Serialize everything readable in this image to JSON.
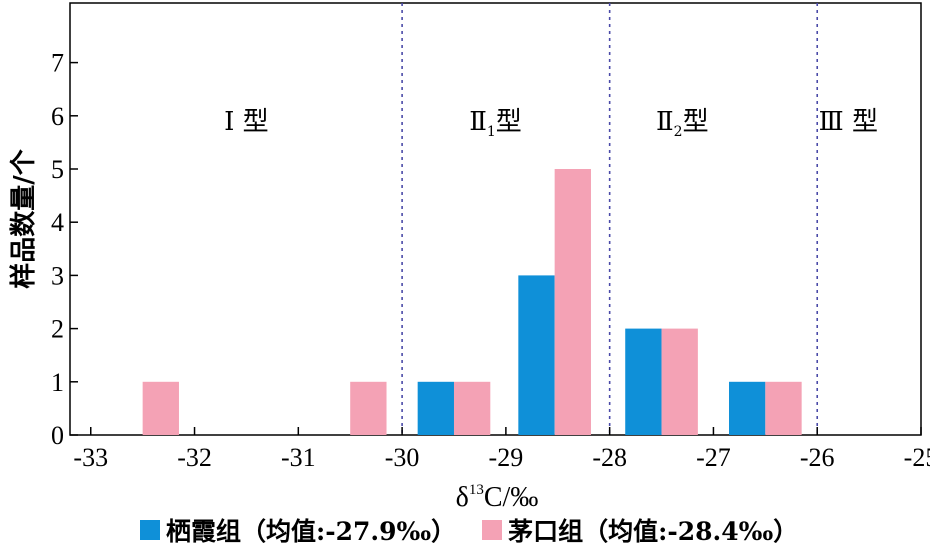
{
  "chart_data": {
    "type": "bar",
    "xlabel_main": "δ",
    "xlabel_sup": "13",
    "xlabel_rest": "C/‰",
    "ylabel": "样品数量/个",
    "xlim": [
      -33.2,
      -25
    ],
    "ylim": [
      0,
      8
    ],
    "x_ticks": [
      -33,
      -32,
      -31,
      -30,
      -29,
      -28,
      -27,
      -26,
      -25
    ],
    "y_ticks": [
      0,
      1,
      2,
      3,
      4,
      5,
      6,
      7
    ],
    "boundaries": [
      -30,
      -28,
      -26
    ],
    "type_labels": [
      {
        "main": "Ⅰ 型",
        "sub": "",
        "tail": "",
        "x": -31.5
      },
      {
        "main": "Ⅱ",
        "sub": "1",
        "tail": "型",
        "x": -29.1
      },
      {
        "main": "Ⅱ",
        "sub": "2",
        "tail": "型",
        "x": -27.3
      },
      {
        "main": "Ⅲ 型",
        "sub": "",
        "tail": "",
        "x": -25.7
      }
    ],
    "bin_width": 0.35,
    "series": [
      {
        "name": "栖霞组（均值:-27.9‰）",
        "color": "#0f90d8",
        "bins": [
          {
            "x0": -29.85,
            "count": 1
          },
          {
            "x0": -28.88,
            "count": 3
          },
          {
            "x0": -27.85,
            "count": 2
          },
          {
            "x0": -26.85,
            "count": 1
          }
        ]
      },
      {
        "name": "茅口组（均值:-28.4‰）",
        "color": "#f4a2b5",
        "bins": [
          {
            "x0": -32.5,
            "count": 1
          },
          {
            "x0": -30.5,
            "count": 1
          },
          {
            "x0": -29.5,
            "count": 1
          },
          {
            "x0": -28.53,
            "count": 5
          },
          {
            "x0": -27.5,
            "count": 2
          },
          {
            "x0": -26.5,
            "count": 1
          }
        ]
      }
    ]
  }
}
